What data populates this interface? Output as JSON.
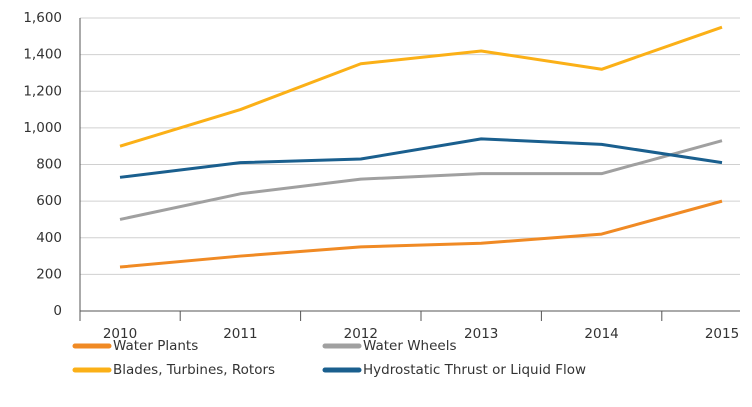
{
  "chart_data": {
    "type": "line",
    "categories": [
      "2010",
      "2011",
      "2012",
      "2013",
      "2014",
      "2015"
    ],
    "series": [
      {
        "name": "Water Plants",
        "color": "#f08a24",
        "values": [
          240,
          300,
          350,
          370,
          420,
          600
        ]
      },
      {
        "name": "Water Wheels",
        "color": "#a0a0a0",
        "values": [
          500,
          640,
          720,
          750,
          750,
          930
        ]
      },
      {
        "name": "Blades, Turbines, Rotors",
        "color": "#fbb017",
        "values": [
          900,
          1100,
          1350,
          1420,
          1320,
          1550
        ]
      },
      {
        "name": "Hydrostatic Thrust or Liquid Flow",
        "color": "#1a5f8e",
        "values": [
          730,
          810,
          830,
          940,
          910,
          810
        ]
      }
    ],
    "ylim": [
      0,
      1600
    ],
    "yticks": [
      0,
      200,
      400,
      600,
      800,
      {
        "value": 1000,
        "label": "1,000"
      },
      {
        "value": 1200,
        "label": "1,200"
      },
      {
        "value": 1400,
        "label": "1,400"
      },
      {
        "value": 1600,
        "label": "1,600"
      }
    ],
    "grid": true
  }
}
